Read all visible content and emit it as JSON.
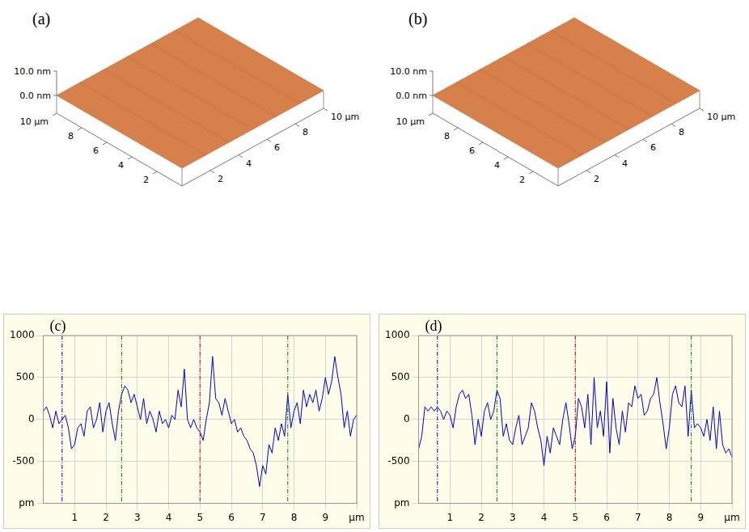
{
  "chart_data": [
    {
      "type": "surface",
      "label": "(a)",
      "color": "#d6804c",
      "xlim": [
        0,
        10
      ],
      "ylim": [
        0,
        10
      ],
      "zlim": [
        0,
        10
      ],
      "xticks": [
        2,
        4,
        6,
        8,
        {
          "value": 10,
          "label": "10 µm"
        }
      ],
      "yticks": [
        2,
        4,
        6,
        8,
        {
          "value": 10,
          "label": "10 µm"
        }
      ],
      "zticks": [
        {
          "value": 0,
          "label": "0.0 nm"
        },
        {
          "value": 10,
          "label": "10.0 nm"
        }
      ]
    },
    {
      "type": "surface",
      "label": "(b)",
      "color": "#d6804c",
      "xlim": [
        0,
        10
      ],
      "ylim": [
        0,
        10
      ],
      "zlim": [
        0,
        10
      ],
      "xticks": [
        2,
        4,
        6,
        8,
        {
          "value": 10,
          "label": "10 µm"
        }
      ],
      "yticks": [
        2,
        4,
        6,
        8,
        {
          "value": 10,
          "label": "10 µm"
        }
      ],
      "zticks": [
        {
          "value": 0,
          "label": "0.0 nm"
        },
        {
          "value": 10,
          "label": "10.0 nm"
        }
      ]
    },
    {
      "type": "line",
      "label": "(c)",
      "color": "#0000cc",
      "grid": true,
      "x": [
        0,
        0.1,
        0.2,
        0.3,
        0.4,
        0.5,
        0.6,
        0.7,
        0.8,
        0.9,
        1,
        1.1,
        1.2,
        1.3,
        1.4,
        1.5,
        1.6,
        1.7,
        1.8,
        1.9,
        2,
        2.1,
        2.2,
        2.3,
        2.4,
        2.5,
        2.6,
        2.7,
        2.8,
        2.9,
        3,
        3.1,
        3.2,
        3.3,
        3.4,
        3.5,
        3.6,
        3.7,
        3.8,
        3.9,
        4,
        4.1,
        4.2,
        4.3,
        4.4,
        4.5,
        4.6,
        4.7,
        4.8,
        4.9,
        5,
        5.1,
        5.2,
        5.3,
        5.4,
        5.5,
        5.6,
        5.7,
        5.8,
        5.9,
        6,
        6.1,
        6.2,
        6.3,
        6.4,
        6.5,
        6.6,
        6.7,
        6.8,
        6.9,
        7,
        7.1,
        7.2,
        7.3,
        7.4,
        7.5,
        7.6,
        7.7,
        7.8,
        7.9,
        8,
        8.1,
        8.2,
        8.3,
        8.4,
        8.5,
        8.6,
        8.7,
        8.8,
        8.9,
        9,
        9.1,
        9.2,
        9.3,
        9.4,
        9.5,
        9.6,
        9.7,
        9.8,
        9.9,
        10
      ],
      "values": [
        100,
        150,
        50,
        -100,
        100,
        -50,
        0,
        50,
        -100,
        -350,
        -300,
        -100,
        -50,
        -200,
        100,
        150,
        -100,
        0,
        200,
        -150,
        100,
        200,
        -50,
        -250,
        100,
        300,
        400,
        350,
        200,
        300,
        150,
        0,
        250,
        -50,
        100,
        0,
        -150,
        100,
        -50,
        0,
        -100,
        50,
        0,
        350,
        150,
        600,
        0,
        -100,
        0,
        -100,
        -150,
        -250,
        0,
        200,
        750,
        250,
        200,
        50,
        250,
        100,
        -50,
        0,
        -150,
        -100,
        -200,
        -250,
        -350,
        -400,
        -550,
        -800,
        -550,
        -650,
        -300,
        -400,
        -100,
        -250,
        -50,
        -200,
        300,
        -100,
        100,
        200,
        -50,
        350,
        150,
        300,
        200,
        350,
        100,
        250,
        500,
        300,
        450,
        750,
        500,
        300,
        -100,
        100,
        -200,
        0,
        50
      ],
      "xlim": [
        0,
        10
      ],
      "xticks": [
        1,
        2,
        3,
        4,
        5,
        6,
        7,
        8,
        9,
        {
          "value": 10,
          "label": "µm"
        }
      ],
      "ylim": [
        -1000,
        1000
      ],
      "yticks": [
        {
          "value": -1000,
          "label": "pm"
        },
        -500,
        0,
        500,
        1000
      ],
      "cursors": [
        {
          "x": 0.6,
          "color": "#0000cc"
        },
        {
          "x": 2.5,
          "color": "#008000"
        },
        {
          "x": 5,
          "color": "#cc0000"
        },
        {
          "x": 7.8,
          "color": "#008000"
        }
      ]
    },
    {
      "type": "line",
      "label": "(d)",
      "color": "#0000cc",
      "grid": true,
      "x": [
        0,
        0.1,
        0.2,
        0.3,
        0.4,
        0.5,
        0.6,
        0.7,
        0.8,
        0.9,
        1,
        1.1,
        1.2,
        1.3,
        1.4,
        1.5,
        1.6,
        1.7,
        1.8,
        1.9,
        2,
        2.1,
        2.2,
        2.3,
        2.4,
        2.5,
        2.6,
        2.7,
        2.8,
        2.9,
        3,
        3.1,
        3.2,
        3.3,
        3.4,
        3.5,
        3.6,
        3.7,
        3.8,
        3.9,
        4,
        4.1,
        4.2,
        4.3,
        4.4,
        4.5,
        4.6,
        4.7,
        4.8,
        4.9,
        5,
        5.1,
        5.2,
        5.3,
        5.4,
        5.5,
        5.6,
        5.7,
        5.8,
        5.9,
        6,
        6.1,
        6.2,
        6.3,
        6.4,
        6.5,
        6.6,
        6.7,
        6.8,
        6.9,
        7,
        7.1,
        7.2,
        7.3,
        7.4,
        7.5,
        7.6,
        7.7,
        7.8,
        7.9,
        8,
        8.1,
        8.2,
        8.3,
        8.4,
        8.5,
        8.6,
        8.7,
        8.8,
        8.9,
        9,
        9.1,
        9.2,
        9.3,
        9.4,
        9.5,
        9.6,
        9.7,
        9.8,
        9.9,
        10
      ],
      "values": [
        -350,
        -200,
        150,
        100,
        150,
        100,
        150,
        100,
        0,
        100,
        50,
        -100,
        150,
        300,
        350,
        250,
        300,
        50,
        -300,
        0,
        -200,
        100,
        200,
        0,
        100,
        350,
        250,
        -200,
        -50,
        -250,
        -300,
        -100,
        50,
        -300,
        -200,
        -100,
        200,
        100,
        -100,
        -250,
        -550,
        -200,
        -400,
        -100,
        -200,
        -300,
        0,
        200,
        -50,
        -350,
        -200,
        250,
        150,
        -100,
        300,
        -300,
        500,
        -100,
        100,
        -200,
        450,
        -400,
        250,
        -100,
        -300,
        100,
        -150,
        200,
        150,
        400,
        250,
        300,
        50,
        100,
        250,
        300,
        500,
        200,
        -50,
        -350,
        -100,
        300,
        400,
        200,
        150,
        400,
        -200,
        350,
        -100,
        -50,
        -100,
        -200,
        0,
        -250,
        150,
        -350,
        100,
        -300,
        -400,
        -350,
        -450
      ],
      "xlim": [
        0,
        10
      ],
      "xticks": [
        1,
        2,
        3,
        4,
        5,
        6,
        7,
        8,
        9,
        {
          "value": 10,
          "label": "µm"
        }
      ],
      "ylim": [
        -1000,
        1000
      ],
      "yticks": [
        {
          "value": -1000,
          "label": "pm"
        },
        -500,
        0,
        500,
        1000
      ],
      "cursors": [
        {
          "x": 0.6,
          "color": "#0000cc"
        },
        {
          "x": 2.5,
          "color": "#008000"
        },
        {
          "x": 5,
          "color": "#cc0000"
        },
        {
          "x": 8.7,
          "color": "#008000"
        }
      ]
    }
  ]
}
